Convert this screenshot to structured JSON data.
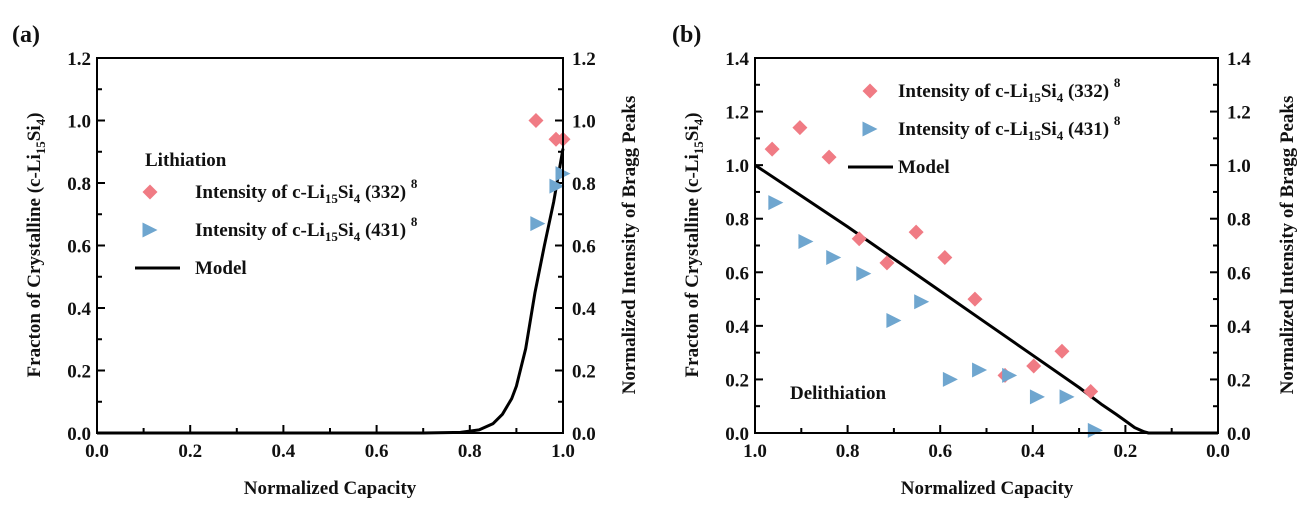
{
  "chart_data": [
    {
      "panel_label": "(a)",
      "type": "scatter",
      "xlabel": "Normalized Capacity",
      "ylabel_left": {
        "main": "Fracton of Crystalline (c-Li",
        "sub1": "15",
        "mid": "Si",
        "sub2": "4",
        "end": ")"
      },
      "ylabel_right": "Normalized Intensity of Bragg Peaks",
      "xlim": [
        0.0,
        1.0
      ],
      "x_reversed": false,
      "ylim": [
        0.0,
        1.2
      ],
      "ylim_right": [
        0.0,
        1.2
      ],
      "xticks": [
        "0.0",
        "0.2",
        "0.4",
        "0.6",
        "0.8",
        "1.0"
      ],
      "xtick_values": [
        0.0,
        0.2,
        0.4,
        0.6,
        0.8,
        1.0
      ],
      "yticks": [
        "0.0",
        "0.2",
        "0.4",
        "0.6",
        "0.8",
        "1.0",
        "1.2"
      ],
      "ytick_values": [
        0.0,
        0.2,
        0.4,
        0.6,
        0.8,
        1.0,
        1.2
      ],
      "grid": false,
      "annotation": "Lithiation",
      "legend_placement": "center-left",
      "series": [
        {
          "name": "Intensity of c-Li15Si4 (332) 8",
          "label": {
            "pre": "Intensity of c-Li",
            "sub1": "15",
            "mid": "Si",
            "sub2": "4",
            "post": " (332) ",
            "sup": "8"
          },
          "marker": "diamond",
          "color": "#f07b84",
          "x": [
            0.942,
            0.985,
            1.0
          ],
          "y": [
            1.0,
            0.94,
            0.94
          ]
        },
        {
          "name": "Intensity of c-Li15Si4 (431) 8",
          "label": {
            "pre": "Intensity of c-Li",
            "sub1": "15",
            "mid": "Si",
            "sub2": "4",
            "post": " (431) ",
            "sup": "8"
          },
          "marker": "triangle-right",
          "color": "#6fa6cf",
          "x": [
            0.946,
            0.987,
            1.0
          ],
          "y": [
            0.67,
            0.79,
            0.83
          ]
        },
        {
          "name": "Model",
          "label": {
            "pre": "Model"
          },
          "marker": "line",
          "color": "#000000",
          "x": [
            0.0,
            0.5,
            0.7,
            0.78,
            0.82,
            0.85,
            0.87,
            0.89,
            0.9,
            0.92,
            0.94,
            0.96,
            0.98,
            1.0
          ],
          "y": [
            0.0,
            0.0,
            0.0,
            0.002,
            0.01,
            0.03,
            0.06,
            0.11,
            0.15,
            0.27,
            0.45,
            0.6,
            0.74,
            0.91
          ]
        }
      ]
    },
    {
      "panel_label": "(b)",
      "type": "scatter",
      "xlabel": "Normalized Capacity",
      "ylabel_left": {
        "main": "Fracton of Crystalline (c-Li",
        "sub1": "15",
        "mid": "Si",
        "sub2": "4",
        "end": ")"
      },
      "ylabel_right": "Normalized Intensity of Bragg Peaks",
      "xlim": [
        1.0,
        0.0
      ],
      "x_reversed": true,
      "ylim": [
        0.0,
        1.4
      ],
      "ylim_right": [
        0.0,
        1.4
      ],
      "xticks": [
        "1.0",
        "0.8",
        "0.6",
        "0.4",
        "0.2",
        "0.0"
      ],
      "xtick_values": [
        1.0,
        0.8,
        0.6,
        0.4,
        0.2,
        0.0
      ],
      "yticks": [
        "0.0",
        "0.2",
        "0.4",
        "0.6",
        "0.8",
        "1.0",
        "1.2",
        "1.4"
      ],
      "ytick_values": [
        0.0,
        0.2,
        0.4,
        0.6,
        0.8,
        1.0,
        1.2,
        1.4
      ],
      "grid": false,
      "annotation": "Delithiation",
      "legend_placement": "top-right",
      "series": [
        {
          "name": "Intensity of c-Li15Si4 (332) 8",
          "label": {
            "pre": "Intensity of c-Li",
            "sub1": "15",
            "mid": "Si",
            "sub2": "4",
            "post": " (332) ",
            "sup": "8"
          },
          "marker": "diamond",
          "color": "#f07b84",
          "x": [
            0.963,
            0.903,
            0.84,
            0.775,
            0.715,
            0.652,
            0.59,
            0.525,
            0.46,
            0.398,
            0.337,
            0.275
          ],
          "y": [
            1.06,
            1.14,
            1.03,
            0.725,
            0.635,
            0.75,
            0.655,
            0.5,
            0.215,
            0.25,
            0.305,
            0.155
          ]
        },
        {
          "name": "Intensity of c-Li15Si4 (431) 8",
          "label": {
            "pre": "Intensity of c-Li",
            "sub1": "15",
            "mid": "Si",
            "sub2": "4",
            "post": " (431) ",
            "sup": "8"
          },
          "marker": "triangle-right",
          "color": "#6fa6cf",
          "x": [
            0.955,
            0.89,
            0.83,
            0.765,
            0.7,
            0.64,
            0.578,
            0.515,
            0.45,
            0.39,
            0.326,
            0.265
          ],
          "y": [
            0.86,
            0.715,
            0.655,
            0.595,
            0.42,
            0.49,
            0.2,
            0.235,
            0.215,
            0.135,
            0.135,
            0.01
          ]
        },
        {
          "name": "Model",
          "label": {
            "pre": "Model"
          },
          "marker": "line",
          "color": "#000000",
          "x": [
            1.0,
            0.9,
            0.8,
            0.7,
            0.6,
            0.5,
            0.4,
            0.3,
            0.25,
            0.22,
            0.2,
            0.18,
            0.16,
            0.15,
            0.0
          ],
          "y": [
            1.0,
            0.885,
            0.77,
            0.65,
            0.53,
            0.41,
            0.29,
            0.17,
            0.105,
            0.07,
            0.045,
            0.02,
            0.005,
            0.0,
            0.0
          ]
        }
      ]
    }
  ]
}
